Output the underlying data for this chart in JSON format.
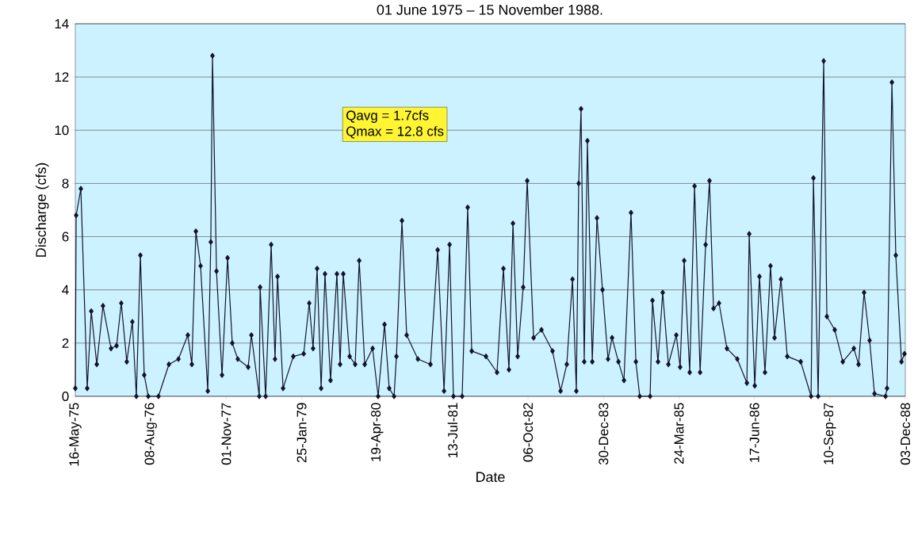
{
  "chart_data": {
    "type": "line",
    "title": "01 June 1975 – 15 November 1988.",
    "xlabel": "Date",
    "ylabel": "Discharge (cfs)",
    "annotations": [
      "Qavg =   1.7cfs",
      "Qmax = 12.8 cfs"
    ],
    "x": [
      "1975-05-16",
      "1975-05-21",
      "1975-06-18",
      "1975-07-26",
      "1975-08-19",
      "1975-09-21",
      "1975-10-28",
      "1975-12-15",
      "1976-01-17",
      "1976-02-14",
      "1976-03-18",
      "1976-04-20",
      "1976-05-14",
      "1976-06-07",
      "1976-06-30",
      "1976-07-24",
      "1976-09-23",
      "1976-11-24",
      "1977-01-20",
      "1977-03-17",
      "1977-04-10",
      "1977-05-04",
      "1977-06-01",
      "1977-07-14",
      "1977-08-01",
      "1977-08-11",
      "1977-09-04",
      "1977-10-07",
      "1977-11-09",
      "1977-12-07",
      "1978-01-09",
      "1978-03-12",
      "1978-03-31",
      "1978-05-17",
      "1978-05-22",
      "1978-06-24",
      "1978-07-27",
      "1978-08-19",
      "1978-09-03",
      "1978-10-06",
      "1978-12-06",
      "1979-02-06",
      "1979-03-11",
      "1979-04-03",
      "1979-04-27",
      "1979-05-21",
      "1979-06-13",
      "1979-07-16",
      "1979-08-23",
      "1979-09-11",
      "1979-09-30",
      "1979-11-07",
      "1979-12-10",
      "1980-01-03",
      "1980-02-05",
      "1980-03-23",
      "1980-04-25",
      "1980-06-02",
      "1980-06-30",
      "1980-07-29",
      "1980-08-12",
      "1980-09-14",
      "1980-10-12",
      "1980-12-18",
      "1981-03-03",
      "1981-04-15",
      "1981-05-23",
      "1981-06-25",
      "1981-07-18",
      "1981-09-08",
      "1981-10-11",
      "1981-11-04",
      "1982-01-28",
      "1982-04-04",
      "1982-05-12",
      "1982-06-14",
      "1982-07-08",
      "1982-08-05",
      "1982-09-07",
      "1982-10-01",
      "1982-11-08",
      "1982-12-25",
      "1983-03-01",
      "1983-04-18",
      "1983-05-25",
      "1983-06-28",
      "1983-07-21",
      "1983-08-04",
      "1983-08-18",
      "1983-09-06",
      "1983-09-25",
      "1983-10-24",
      "1983-11-21",
      "1983-12-24",
      "1984-01-26",
      "1984-02-19",
      "1984-03-28",
      "1984-04-30",
      "1984-06-11",
      "1984-07-10",
      "1984-08-02",
      "1984-10-03",
      "1984-10-17",
      "1984-11-19",
      "1984-12-17",
      "1985-01-20",
      "1985-03-08",
      "1985-03-31",
      "1985-04-24",
      "1985-05-27",
      "1985-06-25",
      "1985-07-28",
      "1985-08-30",
      "1985-09-22",
      "1985-10-16",
      "1985-11-18",
      "1986-01-04",
      "1986-03-07",
      "1986-05-03",
      "1986-05-17",
      "1986-06-19",
      "1986-07-17",
      "1986-08-19",
      "1986-09-21",
      "1986-10-15",
      "1986-11-22",
      "1986-12-30",
      "1987-03-20",
      "1987-05-21",
      "1987-06-04",
      "1987-07-02",
      "1987-08-04",
      "1987-08-23",
      "1987-10-09",
      "1987-11-26",
      "1988-01-31",
      "1988-02-28",
      "1988-04-01",
      "1988-05-04",
      "1988-06-02",
      "1988-08-07",
      "1988-08-16",
      "1988-09-14",
      "1988-10-07",
      "1988-11-10",
      "1988-11-28"
    ],
    "values": [
      0.3,
      6.8,
      7.8,
      0.3,
      3.2,
      1.2,
      3.4,
      1.8,
      1.9,
      3.5,
      1.3,
      2.8,
      0.0,
      5.3,
      0.8,
      0.0,
      0.0,
      1.2,
      1.4,
      2.3,
      1.2,
      6.2,
      4.9,
      0.2,
      5.8,
      12.8,
      4.7,
      0.8,
      5.2,
      2.0,
      1.4,
      1.1,
      2.3,
      0.0,
      4.1,
      0.0,
      5.7,
      1.4,
      4.5,
      0.3,
      1.5,
      1.6,
      3.5,
      1.8,
      4.8,
      0.3,
      4.6,
      0.6,
      4.6,
      1.2,
      4.6,
      1.5,
      1.2,
      5.1,
      1.2,
      1.8,
      0.0,
      2.7,
      0.3,
      0.0,
      1.5,
      6.6,
      2.3,
      1.4,
      1.2,
      5.5,
      0.2,
      5.7,
      0.0,
      0.0,
      7.1,
      1.7,
      1.5,
      0.9,
      4.8,
      1.0,
      6.5,
      1.5,
      4.1,
      8.1,
      2.2,
      2.5,
      1.7,
      0.2,
      1.2,
      4.4,
      0.2,
      8.0,
      10.8,
      1.3,
      9.6,
      1.3,
      6.7,
      4.0,
      1.4,
      2.2,
      1.3,
      0.6,
      6.9,
      1.3,
      0.0,
      0.0,
      3.6,
      1.3,
      3.9,
      1.2,
      2.3,
      1.1,
      5.1,
      0.9,
      7.9,
      0.9,
      5.7,
      8.1,
      3.3,
      3.5,
      1.8,
      1.4,
      0.5,
      6.1,
      0.4,
      4.5,
      0.9,
      4.9,
      2.2,
      4.4,
      1.5,
      1.3,
      0.0,
      8.2,
      0.0,
      12.6,
      3.0,
      2.5,
      1.3,
      1.8,
      1.2,
      3.9,
      2.1,
      0.1,
      0.0,
      0.3,
      11.8,
      5.3,
      1.3,
      1.6
    ],
    "color": "#14142e",
    "marker": "diamond",
    "line_style": "solid",
    "grid": "y",
    "xlim": [
      "1975-05-16",
      "1988-12-03"
    ],
    "xticks": [
      {
        "value": "1975-05-16",
        "label": "16-May-75"
      },
      {
        "value": "1976-08-08",
        "label": "08-Aug-76"
      },
      {
        "value": "1977-11-01",
        "label": "01-Nov-77"
      },
      {
        "value": "1979-01-25",
        "label": "25-Jan-79"
      },
      {
        "value": "1980-04-19",
        "label": "19-Apr-80"
      },
      {
        "value": "1981-07-13",
        "label": "13-Jul-81"
      },
      {
        "value": "1982-10-06",
        "label": "06-Oct-82"
      },
      {
        "value": "1983-12-30",
        "label": "30-Dec-83"
      },
      {
        "value": "1985-03-24",
        "label": "24-Mar-85"
      },
      {
        "value": "1986-06-17",
        "label": "17-Jun-86"
      },
      {
        "value": "1987-09-10",
        "label": "10-Sep-87"
      },
      {
        "value": "1988-12-03",
        "label": "03-Dec-88"
      }
    ],
    "ylim": [
      0,
      14
    ],
    "yticks": [
      0,
      2,
      4,
      6,
      8,
      10,
      12,
      14
    ]
  }
}
